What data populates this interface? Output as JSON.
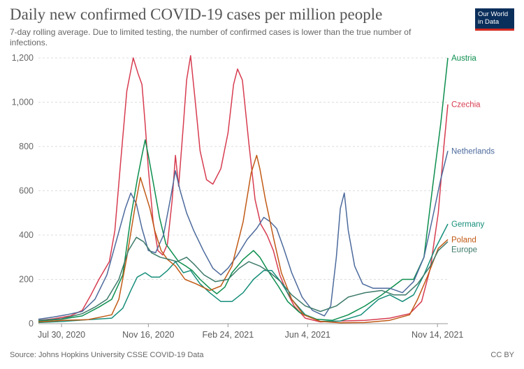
{
  "header": {
    "title": "Daily new confirmed COVID-19 cases per million people",
    "subtitle": "7-day rolling average. Due to limited testing, the number of confirmed cases is lower than the true number of infections.",
    "logo_line1": "Our World",
    "logo_line2": "in Data"
  },
  "footer": {
    "source": "Source: Johns Hopkins University CSSE COVID-19 Data",
    "license": "CC BY"
  },
  "chart_data": {
    "type": "line",
    "xlim": [
      "2020-07-01",
      "2021-11-27"
    ],
    "ylim": [
      0,
      1200
    ],
    "xticks": [
      {
        "date": "2020-07-30",
        "label": "Jul 30, 2020"
      },
      {
        "date": "2020-11-16",
        "label": "Nov 16, 2020"
      },
      {
        "date": "2021-02-24",
        "label": "Feb 24, 2021"
      },
      {
        "date": "2021-06-04",
        "label": "Jun 4, 2021"
      },
      {
        "date": "2021-11-14",
        "label": "Nov 14, 2021"
      }
    ],
    "yticks": [
      {
        "value": 0,
        "label": "0"
      },
      {
        "value": 200,
        "label": "200"
      },
      {
        "value": 400,
        "label": "400"
      },
      {
        "value": 600,
        "label": "600"
      },
      {
        "value": 800,
        "label": "800"
      },
      {
        "value": 1000,
        "label": "1,000"
      },
      {
        "value": 1200,
        "label": "1,200"
      }
    ],
    "grid": true,
    "legend": "labels at line ends (right)",
    "series": [
      {
        "name": "Czechia",
        "color": "#d73c50",
        "points": [
          [
            "2020-07-01",
            15
          ],
          [
            "2020-07-20",
            22
          ],
          [
            "2020-08-10",
            35
          ],
          [
            "2020-08-25",
            60
          ],
          [
            "2020-09-05",
            130
          ],
          [
            "2020-09-15",
            200
          ],
          [
            "2020-09-28",
            280
          ],
          [
            "2020-10-05",
            420
          ],
          [
            "2020-10-12",
            720
          ],
          [
            "2020-10-20",
            1050
          ],
          [
            "2020-10-28",
            1200
          ],
          [
            "2020-11-03",
            1130
          ],
          [
            "2020-11-08",
            1080
          ],
          [
            "2020-11-12",
            900
          ],
          [
            "2020-11-16",
            700
          ],
          [
            "2020-11-22",
            460
          ],
          [
            "2020-11-28",
            330
          ],
          [
            "2020-12-04",
            310
          ],
          [
            "2020-12-10",
            360
          ],
          [
            "2020-12-16",
            560
          ],
          [
            "2020-12-20",
            760
          ],
          [
            "2020-12-24",
            620
          ],
          [
            "2020-12-30",
            900
          ],
          [
            "2021-01-03",
            1100
          ],
          [
            "2021-01-08",
            1210
          ],
          [
            "2021-01-14",
            1000
          ],
          [
            "2021-01-20",
            780
          ],
          [
            "2021-01-28",
            650
          ],
          [
            "2021-02-05",
            630
          ],
          [
            "2021-02-15",
            700
          ],
          [
            "2021-02-24",
            860
          ],
          [
            "2021-03-03",
            1080
          ],
          [
            "2021-03-08",
            1150
          ],
          [
            "2021-03-14",
            1100
          ],
          [
            "2021-03-22",
            820
          ],
          [
            "2021-03-30",
            560
          ],
          [
            "2021-04-06",
            450
          ],
          [
            "2021-04-14",
            400
          ],
          [
            "2021-04-22",
            330
          ],
          [
            "2021-04-30",
            220
          ],
          [
            "2021-05-08",
            150
          ],
          [
            "2021-05-18",
            80
          ],
          [
            "2021-06-01",
            25
          ],
          [
            "2021-06-20",
            8
          ],
          [
            "2021-07-15",
            12
          ],
          [
            "2021-08-15",
            15
          ],
          [
            "2021-09-15",
            25
          ],
          [
            "2021-10-10",
            45
          ],
          [
            "2021-10-25",
            100
          ],
          [
            "2021-11-05",
            250
          ],
          [
            "2021-11-15",
            500
          ],
          [
            "2021-11-22",
            800
          ],
          [
            "2021-11-27",
            990
          ]
        ]
      },
      {
        "name": "Austria",
        "color": "#0c8e4e",
        "points": [
          [
            "2020-07-01",
            12
          ],
          [
            "2020-07-30",
            20
          ],
          [
            "2020-08-25",
            35
          ],
          [
            "2020-09-15",
            75
          ],
          [
            "2020-10-01",
            110
          ],
          [
            "2020-10-15",
            220
          ],
          [
            "2020-10-25",
            480
          ],
          [
            "2020-11-02",
            650
          ],
          [
            "2020-11-08",
            760
          ],
          [
            "2020-11-12",
            830
          ],
          [
            "2020-11-16",
            760
          ],
          [
            "2020-11-22",
            640
          ],
          [
            "2020-11-30",
            480
          ],
          [
            "2020-12-08",
            360
          ],
          [
            "2020-12-16",
            320
          ],
          [
            "2020-12-24",
            280
          ],
          [
            "2021-01-02",
            260
          ],
          [
            "2021-01-10",
            240
          ],
          [
            "2021-01-20",
            200
          ],
          [
            "2021-02-01",
            160
          ],
          [
            "2021-02-10",
            135
          ],
          [
            "2021-02-20",
            165
          ],
          [
            "2021-03-01",
            230
          ],
          [
            "2021-03-15",
            290
          ],
          [
            "2021-03-28",
            330
          ],
          [
            "2021-04-05",
            300
          ],
          [
            "2021-04-15",
            240
          ],
          [
            "2021-04-28",
            170
          ],
          [
            "2021-05-10",
            100
          ],
          [
            "2021-05-25",
            50
          ],
          [
            "2021-06-15",
            20
          ],
          [
            "2021-07-05",
            15
          ],
          [
            "2021-07-25",
            40
          ],
          [
            "2021-08-15",
            80
          ],
          [
            "2021-09-05",
            130
          ],
          [
            "2021-09-20",
            170
          ],
          [
            "2021-10-01",
            200
          ],
          [
            "2021-10-15",
            200
          ],
          [
            "2021-10-28",
            300
          ],
          [
            "2021-11-08",
            620
          ],
          [
            "2021-11-18",
            900
          ],
          [
            "2021-11-27",
            1200
          ]
        ]
      },
      {
        "name": "Netherlands",
        "color": "#4c6a9c",
        "points": [
          [
            "2020-07-01",
            20
          ],
          [
            "2020-07-20",
            30
          ],
          [
            "2020-08-05",
            40
          ],
          [
            "2020-08-25",
            55
          ],
          [
            "2020-09-10",
            110
          ],
          [
            "2020-09-25",
            220
          ],
          [
            "2020-10-08",
            390
          ],
          [
            "2020-10-18",
            520
          ],
          [
            "2020-10-25",
            590
          ],
          [
            "2020-11-01",
            540
          ],
          [
            "2020-11-08",
            430
          ],
          [
            "2020-11-16",
            330
          ],
          [
            "2020-11-25",
            320
          ],
          [
            "2020-12-05",
            400
          ],
          [
            "2020-12-14",
            570
          ],
          [
            "2020-12-20",
            690
          ],
          [
            "2020-12-26",
            600
          ],
          [
            "2021-01-03",
            500
          ],
          [
            "2021-01-12",
            420
          ],
          [
            "2021-01-24",
            330
          ],
          [
            "2021-02-05",
            250
          ],
          [
            "2021-02-15",
            220
          ],
          [
            "2021-02-24",
            250
          ],
          [
            "2021-03-08",
            310
          ],
          [
            "2021-03-20",
            380
          ],
          [
            "2021-04-01",
            430
          ],
          [
            "2021-04-10",
            480
          ],
          [
            "2021-04-18",
            460
          ],
          [
            "2021-04-26",
            430
          ],
          [
            "2021-05-05",
            340
          ],
          [
            "2021-05-15",
            230
          ],
          [
            "2021-05-28",
            120
          ],
          [
            "2021-06-10",
            60
          ],
          [
            "2021-06-25",
            35
          ],
          [
            "2021-07-03",
            80
          ],
          [
            "2021-07-10",
            300
          ],
          [
            "2021-07-15",
            520
          ],
          [
            "2021-07-20",
            590
          ],
          [
            "2021-07-25",
            420
          ],
          [
            "2021-08-02",
            260
          ],
          [
            "2021-08-12",
            180
          ],
          [
            "2021-08-25",
            160
          ],
          [
            "2021-09-15",
            160
          ],
          [
            "2021-10-01",
            140
          ],
          [
            "2021-10-15",
            190
          ],
          [
            "2021-10-28",
            300
          ],
          [
            "2021-11-08",
            480
          ],
          [
            "2021-11-18",
            650
          ],
          [
            "2021-11-27",
            780
          ]
        ]
      },
      {
        "name": "Germany",
        "color": "#168e7a",
        "points": [
          [
            "2020-07-01",
            5
          ],
          [
            "2020-08-01",
            10
          ],
          [
            "2020-09-01",
            18
          ],
          [
            "2020-10-01",
            25
          ],
          [
            "2020-10-15",
            70
          ],
          [
            "2020-10-25",
            150
          ],
          [
            "2020-11-02",
            210
          ],
          [
            "2020-11-12",
            230
          ],
          [
            "2020-11-20",
            210
          ],
          [
            "2020-11-30",
            210
          ],
          [
            "2020-12-10",
            240
          ],
          [
            "2020-12-20",
            280
          ],
          [
            "2020-12-30",
            230
          ],
          [
            "2021-01-08",
            240
          ],
          [
            "2021-01-20",
            180
          ],
          [
            "2021-02-01",
            140
          ],
          [
            "2021-02-15",
            100
          ],
          [
            "2021-03-01",
            100
          ],
          [
            "2021-03-15",
            140
          ],
          [
            "2021-03-28",
            200
          ],
          [
            "2021-04-10",
            240
          ],
          [
            "2021-04-20",
            240
          ],
          [
            "2021-05-01",
            190
          ],
          [
            "2021-05-15",
            110
          ],
          [
            "2021-06-01",
            40
          ],
          [
            "2021-06-20",
            10
          ],
          [
            "2021-07-15",
            12
          ],
          [
            "2021-08-10",
            40
          ],
          [
            "2021-09-01",
            110
          ],
          [
            "2021-09-15",
            130
          ],
          [
            "2021-10-01",
            100
          ],
          [
            "2021-10-15",
            130
          ],
          [
            "2021-10-28",
            220
          ],
          [
            "2021-11-10",
            330
          ],
          [
            "2021-11-27",
            450
          ]
        ]
      },
      {
        "name": "Poland",
        "color": "#c15a16",
        "points": [
          [
            "2020-07-01",
            8
          ],
          [
            "2020-08-01",
            15
          ],
          [
            "2020-09-01",
            18
          ],
          [
            "2020-10-01",
            40
          ],
          [
            "2020-10-10",
            110
          ],
          [
            "2020-10-20",
            300
          ],
          [
            "2020-10-30",
            520
          ],
          [
            "2020-11-06",
            660
          ],
          [
            "2020-11-12",
            590
          ],
          [
            "2020-11-18",
            520
          ],
          [
            "2020-11-24",
            420
          ],
          [
            "2020-12-02",
            330
          ],
          [
            "2020-12-10",
            290
          ],
          [
            "2020-12-20",
            260
          ],
          [
            "2021-01-01",
            200
          ],
          [
            "2021-01-15",
            180
          ],
          [
            "2021-02-01",
            150
          ],
          [
            "2021-02-15",
            170
          ],
          [
            "2021-03-01",
            260
          ],
          [
            "2021-03-15",
            460
          ],
          [
            "2021-03-25",
            680
          ],
          [
            "2021-04-01",
            760
          ],
          [
            "2021-04-05",
            700
          ],
          [
            "2021-04-12",
            560
          ],
          [
            "2021-04-22",
            390
          ],
          [
            "2021-05-02",
            230
          ],
          [
            "2021-05-15",
            110
          ],
          [
            "2021-05-30",
            40
          ],
          [
            "2021-06-20",
            10
          ],
          [
            "2021-07-15",
            4
          ],
          [
            "2021-08-15",
            5
          ],
          [
            "2021-09-15",
            15
          ],
          [
            "2021-10-10",
            40
          ],
          [
            "2021-10-20",
            110
          ],
          [
            "2021-11-01",
            210
          ],
          [
            "2021-11-15",
            340
          ],
          [
            "2021-11-27",
            380
          ]
        ]
      },
      {
        "name": "Europe",
        "color": "#3d7a6a",
        "points": [
          [
            "2020-07-01",
            15
          ],
          [
            "2020-07-30",
            22
          ],
          [
            "2020-08-25",
            45
          ],
          [
            "2020-09-10",
            75
          ],
          [
            "2020-09-25",
            110
          ],
          [
            "2020-10-10",
            200
          ],
          [
            "2020-10-22",
            330
          ],
          [
            "2020-11-01",
            390
          ],
          [
            "2020-11-10",
            370
          ],
          [
            "2020-11-20",
            320
          ],
          [
            "2020-12-01",
            300
          ],
          [
            "2020-12-12",
            290
          ],
          [
            "2020-12-22",
            280
          ],
          [
            "2021-01-03",
            300
          ],
          [
            "2021-01-12",
            270
          ],
          [
            "2021-01-25",
            220
          ],
          [
            "2021-02-08",
            190
          ],
          [
            "2021-02-24",
            200
          ],
          [
            "2021-03-10",
            250
          ],
          [
            "2021-03-22",
            280
          ],
          [
            "2021-04-05",
            260
          ],
          [
            "2021-04-18",
            230
          ],
          [
            "2021-05-01",
            190
          ],
          [
            "2021-05-15",
            130
          ],
          [
            "2021-06-01",
            80
          ],
          [
            "2021-06-20",
            55
          ],
          [
            "2021-07-10",
            80
          ],
          [
            "2021-07-25",
            120
          ],
          [
            "2021-08-15",
            140
          ],
          [
            "2021-09-05",
            150
          ],
          [
            "2021-09-20",
            130
          ],
          [
            "2021-10-05",
            130
          ],
          [
            "2021-10-20",
            180
          ],
          [
            "2021-11-05",
            260
          ],
          [
            "2021-11-15",
            330
          ],
          [
            "2021-11-27",
            370
          ]
        ]
      }
    ]
  }
}
